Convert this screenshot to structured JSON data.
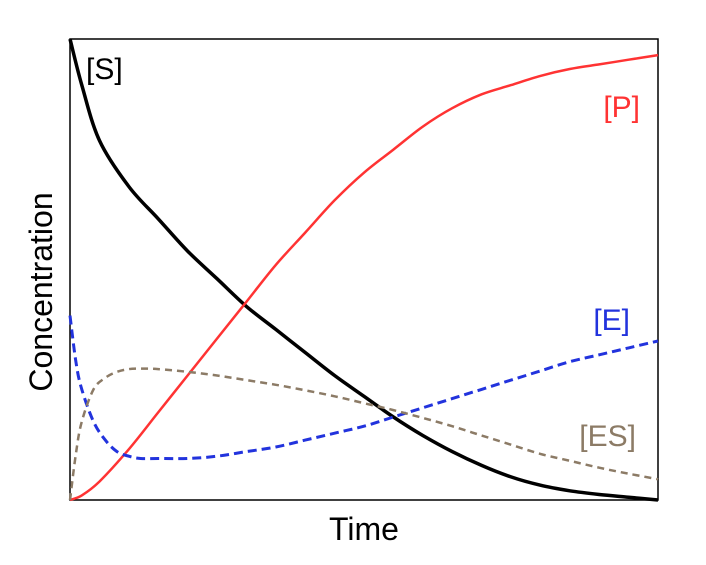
{
  "chart_data": {
    "type": "line",
    "title": "",
    "xlabel": "Time",
    "ylabel": "Concentration",
    "xlim": [
      0,
      1
    ],
    "ylim": [
      0,
      1
    ],
    "grid": false,
    "legend": "inline-labels",
    "series": [
      {
        "name": "[S]",
        "color": "#000000",
        "dash": "solid",
        "x": [
          0,
          0.02,
          0.05,
          0.1,
          0.15,
          0.2,
          0.25,
          0.3,
          0.35,
          0.4,
          0.45,
          0.5,
          0.55,
          0.6,
          0.65,
          0.7,
          0.75,
          0.8,
          0.85,
          0.9,
          0.95,
          1.0
        ],
        "y": [
          1.0,
          0.9,
          0.78,
          0.68,
          0.61,
          0.54,
          0.48,
          0.42,
          0.37,
          0.32,
          0.27,
          0.225,
          0.18,
          0.14,
          0.105,
          0.075,
          0.05,
          0.032,
          0.02,
          0.012,
          0.006,
          0.0
        ]
      },
      {
        "name": "[P]",
        "color": "#ff3333",
        "dash": "solid",
        "x": [
          0,
          0.02,
          0.05,
          0.1,
          0.15,
          0.2,
          0.25,
          0.3,
          0.35,
          0.4,
          0.45,
          0.5,
          0.55,
          0.6,
          0.65,
          0.7,
          0.75,
          0.8,
          0.85,
          0.9,
          0.95,
          1.0
        ],
        "y": [
          0.0,
          0.01,
          0.04,
          0.11,
          0.19,
          0.27,
          0.35,
          0.43,
          0.51,
          0.58,
          0.65,
          0.71,
          0.76,
          0.81,
          0.85,
          0.88,
          0.9,
          0.92,
          0.935,
          0.945,
          0.955,
          0.965
        ]
      },
      {
        "name": "[E]",
        "color": "#2233dd",
        "dash": "dashed",
        "x": [
          0,
          0.01,
          0.02,
          0.04,
          0.06,
          0.08,
          0.1,
          0.12,
          0.15,
          0.2,
          0.25,
          0.3,
          0.35,
          0.4,
          0.45,
          0.5,
          0.55,
          0.6,
          0.65,
          0.7,
          0.75,
          0.8,
          0.85,
          0.9,
          0.95,
          1.0
        ],
        "y": [
          0.4,
          0.3,
          0.24,
          0.17,
          0.13,
          0.105,
          0.095,
          0.09,
          0.09,
          0.09,
          0.095,
          0.105,
          0.115,
          0.13,
          0.145,
          0.16,
          0.18,
          0.2,
          0.22,
          0.24,
          0.26,
          0.28,
          0.3,
          0.315,
          0.33,
          0.345
        ]
      },
      {
        "name": "[ES]",
        "color": "#8c7b66",
        "dash": "dashed",
        "x": [
          0,
          0.01,
          0.02,
          0.04,
          0.06,
          0.08,
          0.1,
          0.12,
          0.15,
          0.2,
          0.25,
          0.3,
          0.35,
          0.4,
          0.45,
          0.5,
          0.55,
          0.6,
          0.65,
          0.7,
          0.75,
          0.8,
          0.85,
          0.9,
          0.95,
          1.0
        ],
        "y": [
          0.0,
          0.1,
          0.17,
          0.24,
          0.265,
          0.278,
          0.284,
          0.285,
          0.284,
          0.278,
          0.27,
          0.26,
          0.25,
          0.238,
          0.225,
          0.21,
          0.195,
          0.178,
          0.16,
          0.14,
          0.12,
          0.1,
          0.085,
          0.07,
          0.057,
          0.045
        ]
      }
    ]
  }
}
